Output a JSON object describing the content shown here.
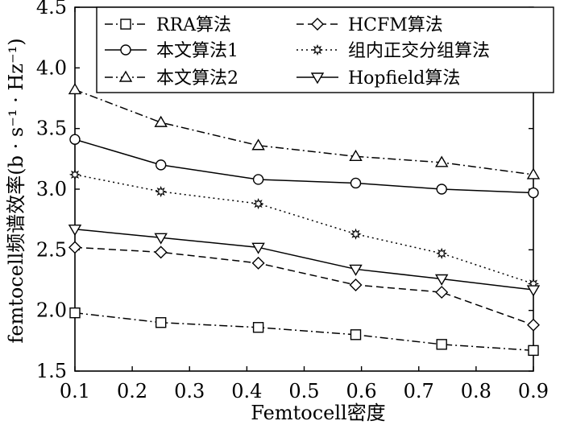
{
  "chart_data": {
    "type": "line",
    "xlabel": "Femtocell密度",
    "ylabel": "femtocell频谱效率(b · s⁻¹ · Hz⁻¹)",
    "xlim": [
      0.1,
      0.9
    ],
    "ylim": [
      1.5,
      4.5
    ],
    "xticks": [
      "0.1",
      "0.2",
      "0.3",
      "0.4",
      "0.5",
      "0.6",
      "0.7",
      "0.8",
      "0.9"
    ],
    "yticks": [
      "1.5",
      "2.0",
      "2.5",
      "3.0",
      "3.5",
      "4.0",
      "4.5"
    ],
    "grid": false,
    "legend_position": "top",
    "x": [
      0.1,
      0.25,
      0.42,
      0.59,
      0.74,
      0.9
    ],
    "series": [
      {
        "name": "RRA算法",
        "marker": "square",
        "dash": "dash-dot",
        "values": [
          1.98,
          1.9,
          1.86,
          1.8,
          1.72,
          1.67
        ]
      },
      {
        "name": "HCFM算法",
        "marker": "diamond",
        "dash": "dashed",
        "values": [
          2.52,
          2.48,
          2.39,
          2.21,
          2.15,
          1.88
        ]
      },
      {
        "name": "本文算法1",
        "marker": "circle",
        "dash": "solid",
        "values": [
          3.41,
          3.2,
          3.08,
          3.05,
          3.0,
          2.97
        ]
      },
      {
        "name": "组内正交分组算法",
        "marker": "star",
        "dash": "dotted",
        "values": [
          3.12,
          2.98,
          2.88,
          2.63,
          2.47,
          2.22
        ]
      },
      {
        "name": "本文算法2",
        "marker": "triangle-up",
        "dash": "dash-dot",
        "values": [
          3.82,
          3.55,
          3.36,
          3.27,
          3.22,
          3.12
        ]
      },
      {
        "name": "Hopfield算法",
        "marker": "triangle-down",
        "dash": "solid",
        "values": [
          2.67,
          2.6,
          2.52,
          2.34,
          2.26,
          2.17
        ]
      }
    ]
  }
}
